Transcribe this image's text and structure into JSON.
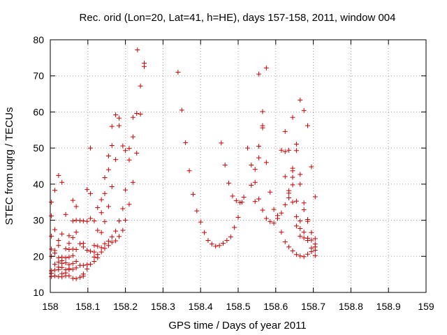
{
  "chart_data": {
    "type": "scatter",
    "title": "Rec. orid (Lon=20, Lat=41, h=HE), days 157-158, 2011, window 004",
    "xlabel": "GPS time / Days of year 2011",
    "ylabel": "STEC from uqrg / TECUs",
    "xlim": [
      158,
      159
    ],
    "ylim": [
      10,
      80
    ],
    "x_ticks": [
      "158",
      "158.1",
      "158.2",
      "158.3",
      "158.4",
      "158.5",
      "158.6",
      "158.7",
      "158.8",
      "158.9",
      "159"
    ],
    "y_ticks": [
      "10",
      "20",
      "30",
      "40",
      "50",
      "60",
      "70",
      "80"
    ],
    "grid": true,
    "legend": "none",
    "marker": "plus",
    "color": "#cc0000",
    "series": [
      {
        "points": [
          [
            158.003,
            35.0
          ],
          [
            158.003,
            31.2
          ],
          [
            158.003,
            25.6
          ],
          [
            158.003,
            22.0
          ],
          [
            158.003,
            20.0
          ],
          [
            158.003,
            16.0
          ],
          [
            158.003,
            15.3
          ],
          [
            158.003,
            14.4
          ],
          [
            158.012,
            38.3
          ],
          [
            158.012,
            27.4
          ],
          [
            158.012,
            21.6
          ],
          [
            158.012,
            20.9
          ],
          [
            158.012,
            17.8
          ],
          [
            158.012,
            16.2
          ],
          [
            158.012,
            14.6
          ],
          [
            158.022,
            42.4
          ],
          [
            158.022,
            24.4
          ],
          [
            158.022,
            23.0
          ],
          [
            158.022,
            19.6
          ],
          [
            158.022,
            18.4
          ],
          [
            158.022,
            17.0
          ],
          [
            158.022,
            16.3
          ],
          [
            158.022,
            14.4
          ],
          [
            158.031,
            40.5
          ],
          [
            158.031,
            26.2
          ],
          [
            158.031,
            19.8
          ],
          [
            158.031,
            18.8
          ],
          [
            158.031,
            18.0
          ],
          [
            158.031,
            16.9
          ],
          [
            158.031,
            15.2
          ],
          [
            158.031,
            14.3
          ],
          [
            158.041,
            31.6
          ],
          [
            158.041,
            22.1
          ],
          [
            158.041,
            19.6
          ],
          [
            158.041,
            18.2
          ],
          [
            158.041,
            16.3
          ],
          [
            158.041,
            15.4
          ],
          [
            158.041,
            14.6
          ],
          [
            158.05,
            25.7
          ],
          [
            158.05,
            23.6
          ],
          [
            158.05,
            21.9
          ],
          [
            158.05,
            19.8
          ],
          [
            158.05,
            17.7
          ],
          [
            158.05,
            16.6
          ],
          [
            158.05,
            16.3
          ],
          [
            158.05,
            14.6
          ],
          [
            158.06,
            35.5
          ],
          [
            158.06,
            29.8
          ],
          [
            158.06,
            25.2
          ],
          [
            158.06,
            22.0
          ],
          [
            158.06,
            20.2
          ],
          [
            158.06,
            18.0
          ],
          [
            158.06,
            16.4
          ],
          [
            158.06,
            13.9
          ],
          [
            158.069,
            33.8
          ],
          [
            158.069,
            30.0
          ],
          [
            158.069,
            26.7
          ],
          [
            158.069,
            21.9
          ],
          [
            158.069,
            18.6
          ],
          [
            158.069,
            16.8
          ],
          [
            158.069,
            13.8
          ],
          [
            158.079,
            29.9
          ],
          [
            158.079,
            23.5
          ],
          [
            158.079,
            17.5
          ],
          [
            158.079,
            14.2
          ],
          [
            158.088,
            29.8
          ],
          [
            158.088,
            23.6
          ],
          [
            158.088,
            22.6
          ],
          [
            158.088,
            17.5
          ],
          [
            158.088,
            15.1
          ],
          [
            158.088,
            14.5
          ],
          [
            158.098,
            38.5
          ],
          [
            158.098,
            29.7
          ],
          [
            158.098,
            21.7
          ],
          [
            158.098,
            17.7
          ],
          [
            158.098,
            16.5
          ],
          [
            158.107,
            50.0
          ],
          [
            158.107,
            37.4
          ],
          [
            158.107,
            30.5
          ],
          [
            158.107,
            21.4
          ],
          [
            158.107,
            17.8
          ],
          [
            158.117,
            29.8
          ],
          [
            158.117,
            23.0
          ],
          [
            158.117,
            21.2
          ],
          [
            158.117,
            19.8
          ],
          [
            158.117,
            18.6
          ],
          [
            158.126,
            33.5
          ],
          [
            158.126,
            27.2
          ],
          [
            158.126,
            22.8
          ],
          [
            158.126,
            19.6
          ],
          [
            158.126,
            20.5
          ],
          [
            158.136,
            35.7
          ],
          [
            158.136,
            32.1
          ],
          [
            158.136,
            26.6
          ],
          [
            158.136,
            22.4
          ],
          [
            158.136,
            21.2
          ],
          [
            158.145,
            41.8
          ],
          [
            158.145,
            37.4
          ],
          [
            158.145,
            29.6
          ],
          [
            158.145,
            23.5
          ],
          [
            158.145,
            22.2
          ],
          [
            158.155,
            47.8
          ],
          [
            158.155,
            44.0
          ],
          [
            158.155,
            33.8
          ],
          [
            158.155,
            24.2
          ],
          [
            158.155,
            23.0
          ],
          [
            158.164,
            56.0
          ],
          [
            158.164,
            50.7
          ],
          [
            158.164,
            39.3
          ],
          [
            158.164,
            25.4
          ],
          [
            158.164,
            23.9
          ],
          [
            158.174,
            59.2
          ],
          [
            158.174,
            46.8
          ],
          [
            158.174,
            27.0
          ],
          [
            158.174,
            24.3
          ],
          [
            158.183,
            58.3
          ],
          [
            158.183,
            56.2
          ],
          [
            158.183,
            29.8
          ],
          [
            158.183,
            25.5
          ],
          [
            158.193,
            50.6
          ],
          [
            158.193,
            33.2
          ],
          [
            158.193,
            27.2
          ],
          [
            158.2,
            49.3
          ],
          [
            158.2,
            38.4
          ],
          [
            158.2,
            30.0
          ],
          [
            158.21,
            49.9
          ],
          [
            158.21,
            46.7
          ],
          [
            158.21,
            34.4
          ],
          [
            158.22,
            58.5
          ],
          [
            158.22,
            53.1
          ],
          [
            158.22,
            40.5
          ],
          [
            158.23,
            59.6
          ],
          [
            158.23,
            48.6
          ],
          [
            158.24,
            67.2
          ],
          [
            158.24,
            59.4
          ],
          [
            158.25,
            73.5
          ],
          [
            158.25,
            72.6
          ],
          [
            158.232,
            77.2
          ],
          [
            158.34,
            71.0
          ],
          [
            158.35,
            60.5
          ],
          [
            158.36,
            51.5
          ],
          [
            158.37,
            43.7
          ],
          [
            158.38,
            37.2
          ],
          [
            158.39,
            32.6
          ],
          [
            158.4,
            29.5
          ],
          [
            158.41,
            26.6
          ],
          [
            158.42,
            24.4
          ],
          [
            158.43,
            23.4
          ],
          [
            158.44,
            22.8
          ],
          [
            158.45,
            23.0
          ],
          [
            158.46,
            23.6
          ],
          [
            158.47,
            24.4
          ],
          [
            158.48,
            25.4
          ],
          [
            158.49,
            28.0
          ],
          [
            158.5,
            30.8
          ],
          [
            158.51,
            35.0
          ],
          [
            158.455,
            51.4
          ],
          [
            158.465,
            45.3
          ],
          [
            158.475,
            40.3
          ],
          [
            158.485,
            36.7
          ],
          [
            158.495,
            35.4
          ],
          [
            158.505,
            34.9
          ],
          [
            158.515,
            36.4
          ],
          [
            158.525,
            50.0
          ],
          [
            158.535,
            45.3
          ],
          [
            158.535,
            39.7
          ],
          [
            158.545,
            44.1
          ],
          [
            158.545,
            40.5
          ],
          [
            158.545,
            35.2
          ],
          [
            158.555,
            70.5
          ],
          [
            158.555,
            50.5
          ],
          [
            158.555,
            47.3
          ],
          [
            158.555,
            35.9
          ],
          [
            158.565,
            60.1
          ],
          [
            158.565,
            56.2
          ],
          [
            158.565,
            55.6
          ],
          [
            158.565,
            32.8
          ],
          [
            158.575,
            72.2
          ],
          [
            158.575,
            46.0
          ],
          [
            158.575,
            30.5
          ],
          [
            158.585,
            37.8
          ],
          [
            158.585,
            29.6
          ],
          [
            158.595,
            33.0
          ],
          [
            158.595,
            29.2
          ],
          [
            158.605,
            31.3
          ],
          [
            158.605,
            30.5
          ],
          [
            158.615,
            49.4
          ],
          [
            158.615,
            32.0
          ],
          [
            158.615,
            26.7
          ],
          [
            158.625,
            54.6
          ],
          [
            158.625,
            49.0
          ],
          [
            158.625,
            42.1
          ],
          [
            158.625,
            34.3
          ],
          [
            158.625,
            24.0
          ],
          [
            158.635,
            49.4
          ],
          [
            158.635,
            38.2
          ],
          [
            158.635,
            37.5
          ],
          [
            158.635,
            36.2
          ],
          [
            158.635,
            22.6
          ],
          [
            158.645,
            58.5
          ],
          [
            158.645,
            44.4
          ],
          [
            158.645,
            43.7
          ],
          [
            158.645,
            41.9
          ],
          [
            158.645,
            39.8
          ],
          [
            158.645,
            35.0
          ],
          [
            158.645,
            21.5
          ],
          [
            158.655,
            51.1
          ],
          [
            158.655,
            49.3
          ],
          [
            158.655,
            35.3
          ],
          [
            158.655,
            31.0
          ],
          [
            158.655,
            28.4
          ],
          [
            158.655,
            20.5
          ],
          [
            158.665,
            63.3
          ],
          [
            158.665,
            42.7
          ],
          [
            158.665,
            40.0
          ],
          [
            158.665,
            29.8
          ],
          [
            158.665,
            27.7
          ],
          [
            158.665,
            25.6
          ],
          [
            158.665,
            20.1
          ],
          [
            158.675,
            60.4
          ],
          [
            158.675,
            34.8
          ],
          [
            158.675,
            32.9
          ],
          [
            158.675,
            26.7
          ],
          [
            158.675,
            25.1
          ],
          [
            158.675,
            19.9
          ],
          [
            158.685,
            56.2
          ],
          [
            158.685,
            30.2
          ],
          [
            158.685,
            29.7
          ],
          [
            158.685,
            25.0
          ],
          [
            158.685,
            24.4
          ],
          [
            158.685,
            20.6
          ],
          [
            158.695,
            44.8
          ],
          [
            158.695,
            26.6
          ],
          [
            158.695,
            24.5
          ],
          [
            158.695,
            22.3
          ],
          [
            158.695,
            21.3
          ],
          [
            158.705,
            36.5
          ],
          [
            158.705,
            24.9
          ],
          [
            158.705,
            23.4
          ],
          [
            158.705,
            22.6
          ],
          [
            158.705,
            21.7
          ],
          [
            158.705,
            20.2
          ]
        ]
      }
    ]
  }
}
